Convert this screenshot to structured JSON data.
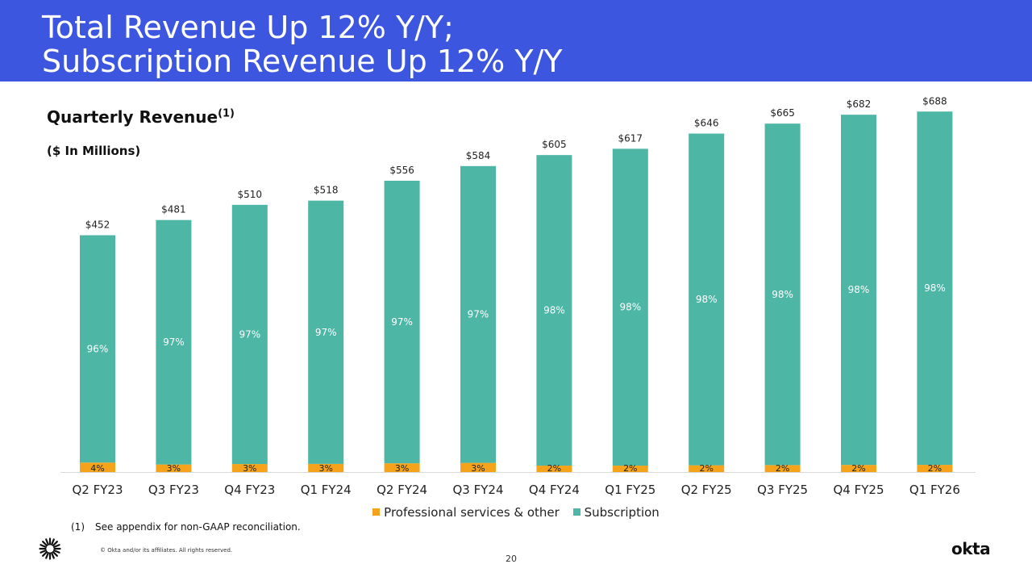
{
  "header": {
    "title_line1": "Total Revenue Up 12% Y/Y;",
    "title_line2": "Subscription Revenue Up 12% Y/Y",
    "bg_color": "#3c56e0"
  },
  "chart_data": {
    "type": "bar",
    "stacked": true,
    "title": "Quarterly Revenue",
    "title_superscript": "(1)",
    "subtitle": "($ In Millions)",
    "categories": [
      "Q2 FY23",
      "Q3 FY23",
      "Q4 FY23",
      "Q1 FY24",
      "Q2 FY24",
      "Q3 FY24",
      "Q4 FY24",
      "Q1 FY25",
      "Q2 FY25",
      "Q3 FY25",
      "Q4 FY25",
      "Q1 FY26"
    ],
    "totals": [
      452,
      481,
      510,
      518,
      556,
      584,
      605,
      617,
      646,
      665,
      682,
      688
    ],
    "total_labels": [
      "$452",
      "$481",
      "$510",
      "$518",
      "$556",
      "$584",
      "$605",
      "$617",
      "$646",
      "$665",
      "$682",
      "$688"
    ],
    "series": [
      {
        "name": "Professional services & other",
        "color": "#f5a31a",
        "labels": [
          "4%",
          "3%",
          "3%",
          "3%",
          "3%",
          "3%",
          "2%",
          "2%",
          "2%",
          "2%",
          "2%",
          "2%"
        ]
      },
      {
        "name": "Subscription",
        "color": "#4db6a5",
        "labels": [
          "96%",
          "97%",
          "97%",
          "97%",
          "97%",
          "97%",
          "98%",
          "98%",
          "98%",
          "98%",
          "98%",
          "98%"
        ]
      }
    ],
    "ylim": [
      0,
      750
    ],
    "legend_position": "bottom"
  },
  "footnote": {
    "number": "(1)",
    "text": "See appendix for non-GAAP reconciliation."
  },
  "footer": {
    "copyright": "© Okta and/or its affiliates. All rights reserved.",
    "page_number": "20",
    "logo_text": "okta"
  }
}
